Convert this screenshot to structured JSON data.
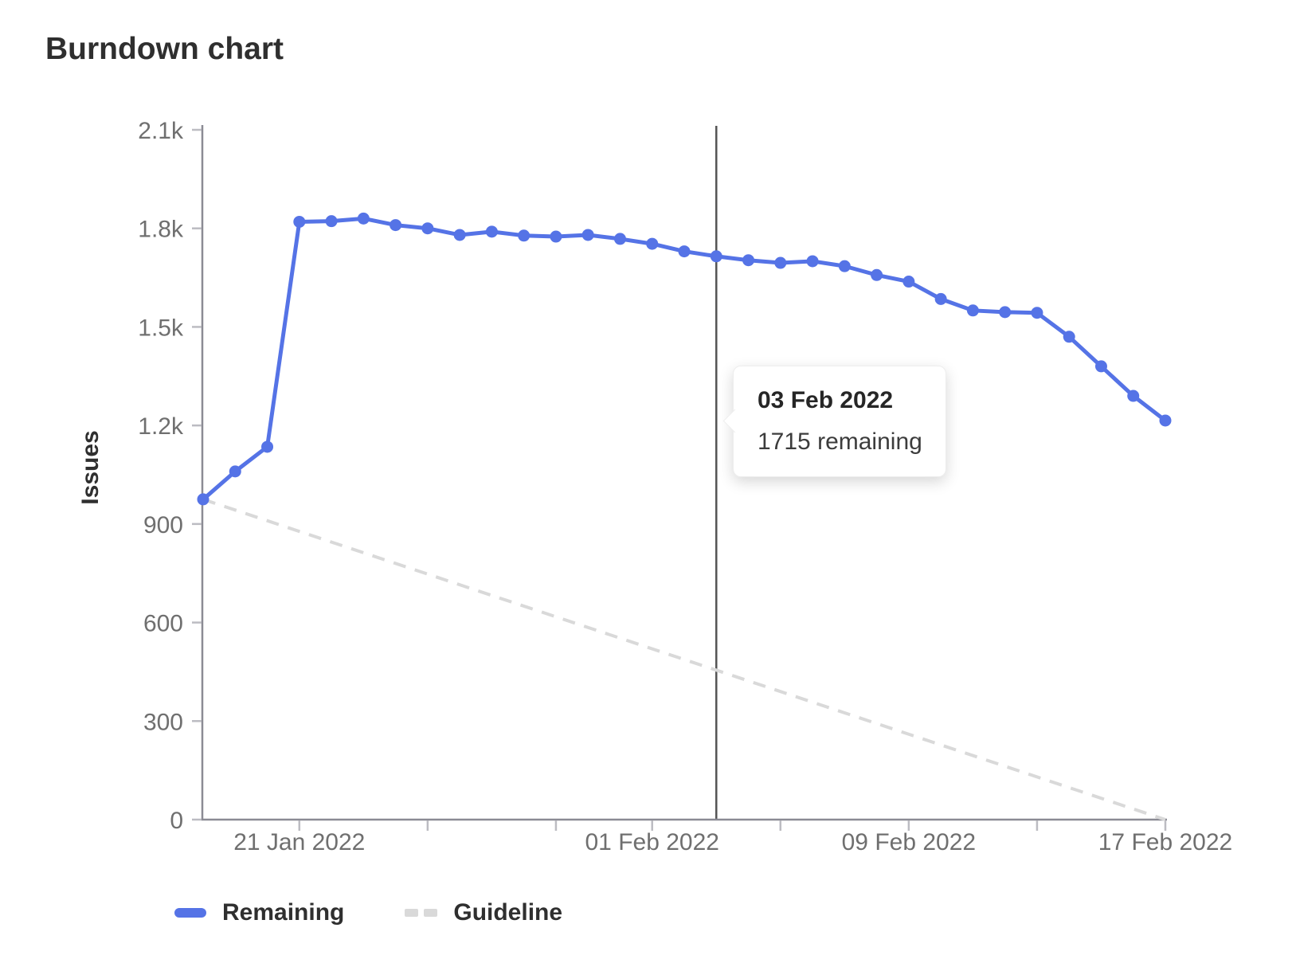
{
  "chart_data": {
    "type": "line",
    "title": "Burndown chart",
    "xlabel": "",
    "ylabel": "Issues",
    "ylim": [
      0,
      2100
    ],
    "grid": false,
    "legend_position": "bottom",
    "x": [
      "18 Jan 2022",
      "19 Jan 2022",
      "20 Jan 2022",
      "21 Jan 2022",
      "22 Jan 2022",
      "23 Jan 2022",
      "24 Jan 2022",
      "25 Jan 2022",
      "26 Jan 2022",
      "27 Jan 2022",
      "28 Jan 2022",
      "29 Jan 2022",
      "30 Jan 2022",
      "31 Jan 2022",
      "01 Feb 2022",
      "02 Feb 2022",
      "03 Feb 2022",
      "04 Feb 2022",
      "05 Feb 2022",
      "06 Feb 2022",
      "07 Feb 2022",
      "08 Feb 2022",
      "09 Feb 2022",
      "10 Feb 2022",
      "11 Feb 2022",
      "12 Feb 2022",
      "13 Feb 2022",
      "14 Feb 2022",
      "15 Feb 2022",
      "16 Feb 2022",
      "17 Feb 2022"
    ],
    "series": [
      {
        "name": "Remaining",
        "style": "solid",
        "values": [
          975,
          1060,
          1135,
          1820,
          1822,
          1830,
          1810,
          1800,
          1780,
          1790,
          1778,
          1775,
          1780,
          1768,
          1753,
          1730,
          1715,
          1703,
          1695,
          1700,
          1685,
          1658,
          1638,
          1585,
          1550,
          1545,
          1543,
          1470,
          1380,
          1290,
          1215
        ]
      },
      {
        "name": "Guideline",
        "style": "dashed",
        "start_value": 975,
        "end_value": 0
      }
    ],
    "y_ticks": [
      {
        "value": 0,
        "label": "0"
      },
      {
        "value": 300,
        "label": "300"
      },
      {
        "value": 600,
        "label": "600"
      },
      {
        "value": 900,
        "label": "900"
      },
      {
        "value": 1200,
        "label": "1.2k"
      },
      {
        "value": 1500,
        "label": "1.5k"
      },
      {
        "value": 1800,
        "label": "1.8k"
      },
      {
        "value": 2100,
        "label": "2.1k"
      }
    ],
    "x_ticks": [
      {
        "index": 3,
        "label": "21 Jan 2022"
      },
      {
        "index": 7,
        "label": ""
      },
      {
        "index": 11,
        "label": ""
      },
      {
        "index": 14,
        "label": "01 Feb 2022"
      },
      {
        "index": 18,
        "label": ""
      },
      {
        "index": 22,
        "label": "09 Feb 2022"
      },
      {
        "index": 26,
        "label": ""
      },
      {
        "index": 30,
        "label": "17 Feb 2022"
      }
    ],
    "hover": {
      "index": 16
    }
  },
  "tooltip": {
    "title": "03 Feb 2022",
    "body": "1715 remaining"
  },
  "legend": {
    "items": [
      {
        "label": "Remaining"
      },
      {
        "label": "Guideline"
      }
    ]
  },
  "colors": {
    "remaining": "#5573e6",
    "guideline": "#d9d9d9",
    "axis": "#8b8b94",
    "tick_mark": "#bcbcc2",
    "tick_text": "#6f6f6f",
    "hover_line": "#545454",
    "title_text": "#2f2f2f"
  }
}
